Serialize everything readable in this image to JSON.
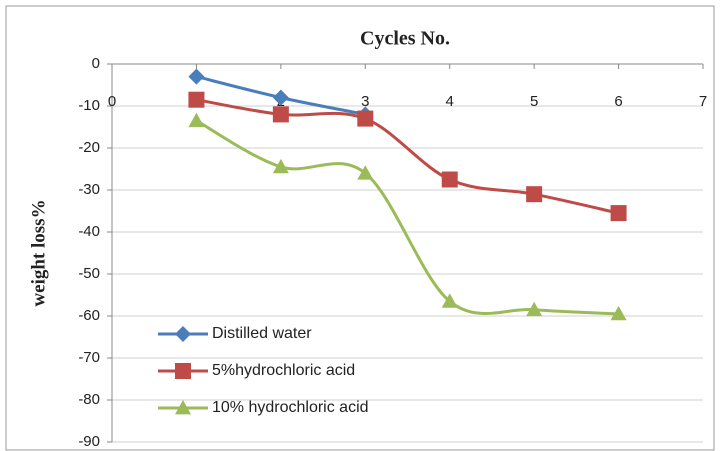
{
  "chart_data": {
    "type": "line",
    "title": "Cycles No.",
    "y_label": "weight loss%",
    "x": [
      1,
      2,
      3,
      4,
      5,
      6
    ],
    "series": [
      {
        "name": "Distilled water",
        "color": "#4a7ebb",
        "marker": "diamond",
        "values": [
          -3,
          -8,
          -12,
          null,
          null,
          null
        ]
      },
      {
        "name": "5%hydrochloric acid",
        "color": "#be4b48",
        "marker": "square",
        "values": [
          -8.5,
          -12,
          -13,
          -27.5,
          -31,
          -35.5
        ]
      },
      {
        "name": "10% hydrochloric acid",
        "color": "#9bbb59",
        "marker": "triangle",
        "values": [
          -13.5,
          -24.5,
          -26,
          -56.5,
          -58.5,
          -59.5
        ]
      }
    ],
    "xlim": [
      0,
      7
    ],
    "xticks": [
      0,
      1,
      2,
      3,
      4,
      5,
      6,
      7
    ],
    "ylim": [
      -90,
      0
    ],
    "yticks": [
      0,
      -10,
      -20,
      -30,
      -40,
      -50,
      -60,
      -70,
      -80,
      -90
    ],
    "grid": true,
    "legend": "lower-left"
  }
}
